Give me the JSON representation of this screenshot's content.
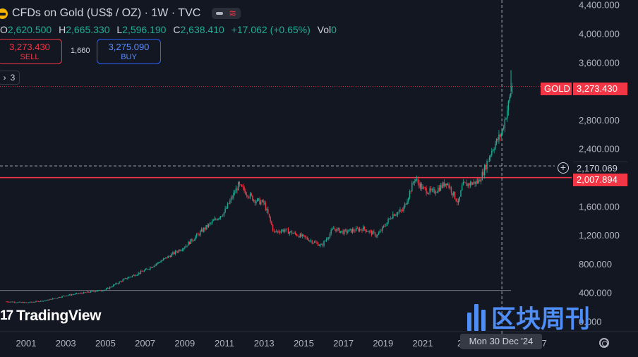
{
  "header": {
    "title": "CFDs on Gold (US$ / OZ) · 1W · TVC",
    "ohlc": {
      "o_label": "O",
      "o": "2,620.500",
      "h_label": "H",
      "h": "2,665.330",
      "l_label": "L",
      "l": "2,596.190",
      "c_label": "C",
      "c": "2,638.410",
      "change": "+17.062 (+0.65%)",
      "vol_label": "Vol",
      "vol": "0"
    }
  },
  "trade": {
    "sell_price": "3,273.430",
    "sell_label": "SELL",
    "spread": "1,660",
    "buy_price": "3,275.090",
    "buy_label": "BUY"
  },
  "indicators_collapsed_count": "3",
  "price_axis": {
    "ticks": [
      "4,400.000",
      "4,000.000",
      "3,600.000",
      "2,800.000",
      "2,400.000",
      "1,600.000",
      "1,200.000",
      "800.000",
      "400.000",
      "0.000"
    ],
    "symbol_tag": "GOLD",
    "last_price": "3,273.430",
    "crosshair_price": "2,170.069",
    "level_price": "2,007.894"
  },
  "time_axis": {
    "ticks": [
      "2001",
      "2003",
      "2005",
      "2007",
      "2009",
      "2011",
      "2013",
      "2015",
      "2017",
      "2019",
      "2021",
      "20",
      "27"
    ],
    "crosshair_date": "Mon 30 Dec '24"
  },
  "branding": {
    "tradingview": "TradingView",
    "watermark": "区块周刊"
  },
  "colors": {
    "background": "#131722",
    "up": "#22ab94",
    "down": "#f23645",
    "level_line": "#f23645",
    "buy": "#2962ff"
  },
  "chart_data": {
    "type": "line",
    "x": [
      2000.0,
      2001.0,
      2002.0,
      2003.0,
      2004.0,
      2005.0,
      2006.0,
      2007.0,
      2008.0,
      2009.0,
      2010.0,
      2011.0,
      2011.7,
      2012.5,
      2013.0,
      2013.5,
      2014.0,
      2015.0,
      2015.9,
      2016.5,
      2017.0,
      2018.0,
      2018.7,
      2019.5,
      2020.0,
      2020.6,
      2021.0,
      2021.5,
      2022.0,
      2022.2,
      2022.8,
      2023.0,
      2023.8,
      2024.0,
      2024.5,
      2024.99,
      2025.3,
      2025.5
    ],
    "y": [
      285,
      270,
      300,
      370,
      410,
      450,
      600,
      720,
      880,
      1050,
      1300,
      1530,
      1900,
      1700,
      1650,
      1250,
      1280,
      1180,
      1060,
      1300,
      1250,
      1300,
      1200,
      1500,
      1550,
      2000,
      1850,
      1800,
      1900,
      1950,
      1650,
      1900,
      1950,
      2050,
      2400,
      2638,
      3000,
      3273
    ],
    "series": [
      {
        "values": [
          285,
          270,
          300,
          370,
          410,
          450,
          600,
          720,
          880,
          1050,
          1300,
          1530,
          1900,
          1700,
          1650,
          1250,
          1280,
          1180,
          1060,
          1300,
          1250,
          1300,
          1200,
          1500,
          1550,
          2000,
          1850,
          1800,
          1900,
          1950,
          1650,
          1900,
          1950,
          2050,
          2400,
          2638,
          3000,
          3273
        ]
      }
    ],
    "xlim": [
      2000.0,
      2027.5
    ],
    "ylim": [
      0,
      4500
    ],
    "ylabel": "",
    "xlabel": "",
    "title": ""
  }
}
